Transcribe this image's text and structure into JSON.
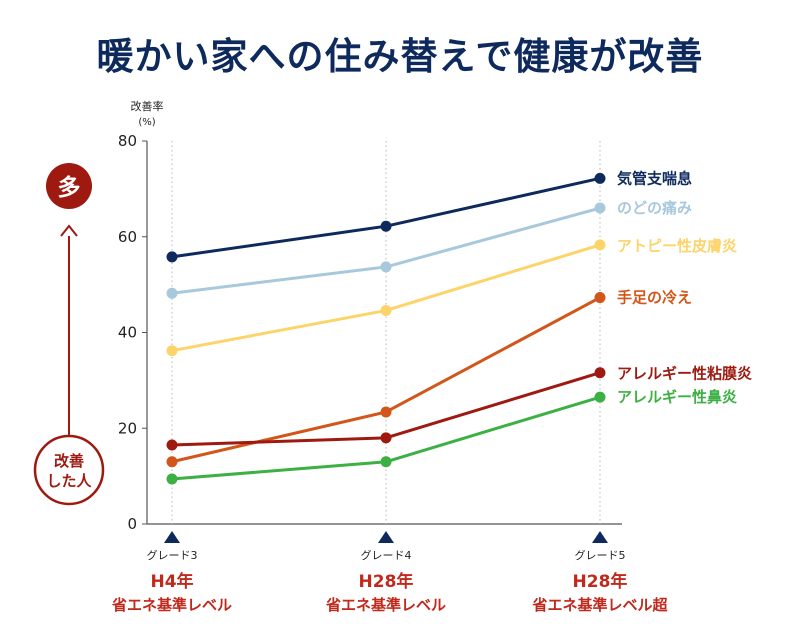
{
  "title": "暖かい家への住み替えで健康が改善",
  "chart_data": {
    "type": "line",
    "ylabel_line1": "改善率",
    "ylabel_line2": "(%)",
    "ylim": [
      0,
      80
    ],
    "yticks": [
      0,
      20,
      40,
      60,
      80
    ],
    "grid": "vertical dotted lines at each grade",
    "categories": [
      {
        "grade": "グレード3",
        "year": "H4年",
        "level": "省エネ基準レベル"
      },
      {
        "grade": "グレード4",
        "year": "H28年",
        "level": "省エネ基準レベル"
      },
      {
        "grade": "グレード5",
        "year": "H28年",
        "level": "省エネ基準レベル超"
      }
    ],
    "series": [
      {
        "name": "気管支喘息",
        "values": [
          55.8,
          62.2,
          72.2
        ],
        "color": "#0e2a5c"
      },
      {
        "name": "のどの痛み",
        "values": [
          48.2,
          53.7,
          66.0
        ],
        "color": "#a8c8dc"
      },
      {
        "name": "アトピー性皮膚炎",
        "values": [
          36.2,
          44.6,
          58.3
        ],
        "color": "#fcd46a"
      },
      {
        "name": "手足の冷え",
        "values": [
          13.0,
          23.4,
          47.3
        ],
        "color": "#d2561a"
      },
      {
        "name": "アレルギー性粘膜炎",
        "values": [
          16.5,
          18.0,
          31.6
        ],
        "color": "#9e1a10"
      },
      {
        "name": "アレルギー性鼻炎",
        "values": [
          9.4,
          13.0,
          26.5
        ],
        "color": "#3cb043"
      }
    ]
  },
  "side_indicator": {
    "top_badge": "多",
    "bottom_line1": "改善",
    "bottom_line2": "した人",
    "color": "#9e1a10"
  }
}
